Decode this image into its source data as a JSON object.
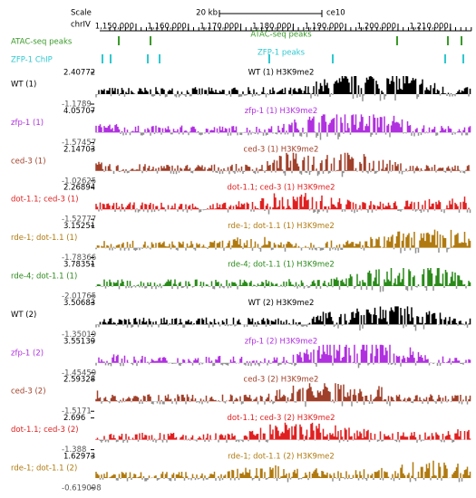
{
  "header": {
    "scale_label": "Scale",
    "scale_length": "20 kb",
    "assembly": "ce10",
    "chromosome": "chrIV",
    "positions": [
      "1,150,000",
      "1,160,000",
      "1,170,000",
      "1,180,000",
      "1,190,000",
      "1,200,000",
      "1,210,000"
    ]
  },
  "annotation_tracks": [
    {
      "name": "ATAC-seq peaks",
      "title": "ATAC-seq peaks",
      "color": "#3a9a2a"
    },
    {
      "name": "ZFP-1 ChIP",
      "title": "ZFP-1 peaks",
      "color": "#30c8d0"
    }
  ],
  "tracks": [
    {
      "label": "WT (1)",
      "max": "2.40772",
      "min": "-1.1789",
      "title": "WT (1) H3K9me2",
      "color": "#000000"
    },
    {
      "label": "zfp-1 (1)",
      "max": "4.05707",
      "min": "-1.57457",
      "title": "zfp-1 (1) H3K9me2",
      "color": "#b030e0"
    },
    {
      "label": "ced-3 (1)",
      "max": "2.14703",
      "min": "-1.02625",
      "title": "ced-3 (1) H3K9me2",
      "color": "#a0402a"
    },
    {
      "label": "dot-1.1; ced-3 (1)",
      "max": "2.26894",
      "min": "-1.52777",
      "title": "dot-1.1; ced-3 (1) H3K9me2",
      "color": "#e02020"
    },
    {
      "label": "rde-1; dot-1.1 (1)",
      "max": "3.15251",
      "min": "-1.78366",
      "title": "rde-1; dot-1.1 (1) H3K9me2",
      "color": "#b07a10"
    },
    {
      "label": "rde-4; dot-1.1 (1)",
      "max": "3.78351",
      "min": "-2.01765",
      "title": "rde-4; dot-1.1 (1) H3K9me2",
      "color": "#2a8a1a"
    },
    {
      "label": "WT (2)",
      "max": "3.50683",
      "min": "-1.35019",
      "title": "WT (2) H3K9me2",
      "color": "#000000"
    },
    {
      "label": "zfp-1 (2)",
      "max": "3.55139",
      "min": "-1.45459",
      "title": "zfp-1 (2) H3K9me2",
      "color": "#b030e0"
    },
    {
      "label": "ced-3 (2)",
      "max": "2.59328",
      "min": "-1.5171",
      "title": "ced-3 (2) H3K9me2",
      "color": "#a0402a"
    },
    {
      "label": "dot-1.1; ced-3 (2)",
      "max": "2.696",
      "min": "-1.388",
      "title": "dot-1.1; ced-3 (2) H3K9me2",
      "color": "#e02020"
    },
    {
      "label": "rde-1; dot-1.1 (2)",
      "max": "1.62973",
      "min": "-0.619098",
      "title": "rde-1; dot-1.1 (2) H3K9me2",
      "color": "#b07a10"
    }
  ]
}
